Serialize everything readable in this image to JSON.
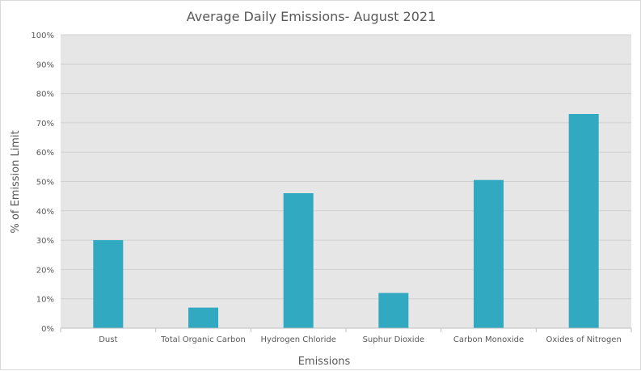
{
  "chart_data": {
    "type": "bar",
    "title": "Average Daily Emissions- August 2021",
    "xlabel": "Emissions",
    "ylabel": "% of Emission Limit",
    "categories": [
      "Dust",
      "Total Organic Carbon",
      "Hydrogen Chloride",
      "Suphur Dioxide",
      "Carbon  Monoxide",
      "Oxides of Nitrogen"
    ],
    "values": [
      30,
      7,
      46,
      12,
      50.5,
      73
    ],
    "ylim": [
      0,
      100
    ],
    "yticks": [
      "0%",
      "10%",
      "20%",
      "30%",
      "40%",
      "50%",
      "60%",
      "70%",
      "80%",
      "90%",
      "100%"
    ],
    "grid": true,
    "legend": "none",
    "colors": {
      "bar": "#31a9c1",
      "plot_background": "#e6e6e6",
      "gridline": "#d0d0d0"
    }
  }
}
